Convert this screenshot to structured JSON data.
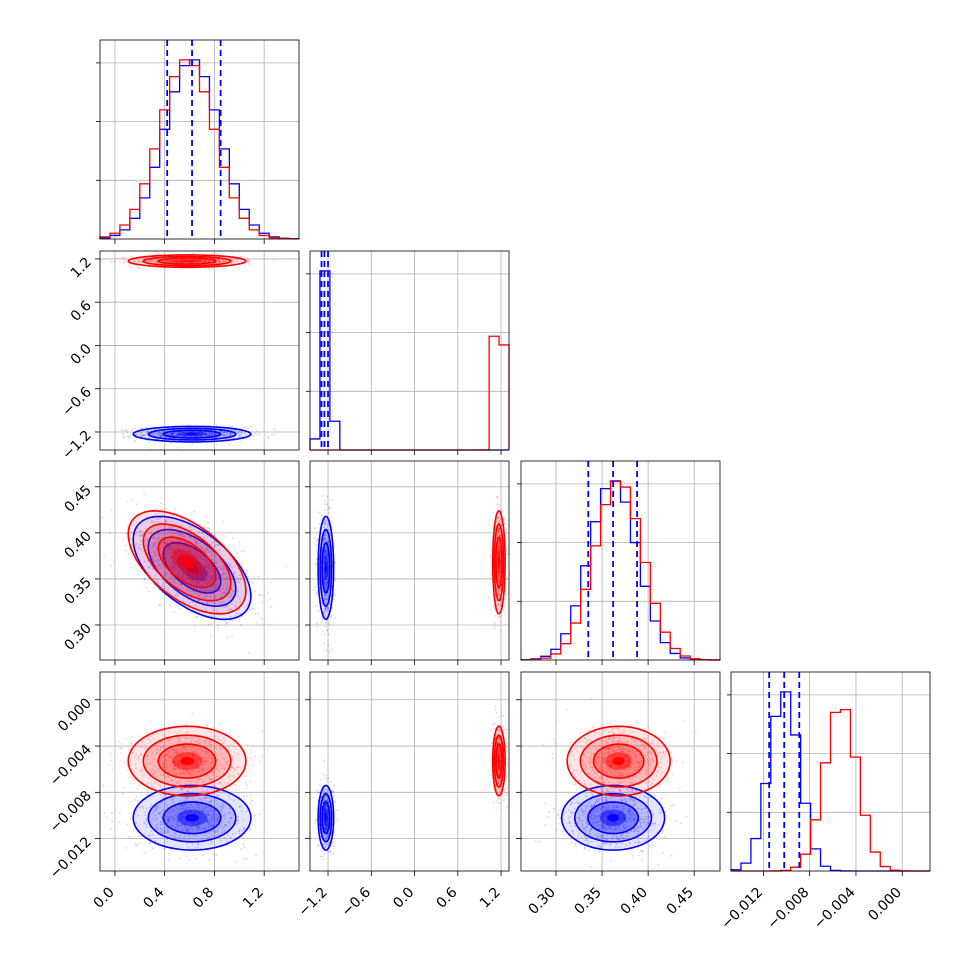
{
  "colors": {
    "blue": "#0000ff",
    "red": "#ff0000",
    "grid": "#b0b0b0"
  },
  "chart_data": {
    "type": "corner",
    "grid": true,
    "series": [
      {
        "color": "#0000ff",
        "x0": {
          "center": 0.62,
          "sd": 0.22
        },
        "x1": {
          "center": -1.23,
          "sd": 0.05
        },
        "x2": {
          "center": 0.362,
          "sd": 0.026
        },
        "x3": {
          "center": -0.0102,
          "sd": 0.0013
        },
        "corr": {
          "x0_x2": -0.55
        }
      },
      {
        "color": "#ff0000",
        "x0": {
          "center": 0.58,
          "sd": 0.22
        },
        "x1": {
          "center": 1.17,
          "sd": 0.04
        },
        "x2": {
          "center": 0.368,
          "sd": 0.026
        },
        "x3": {
          "center": -0.0053,
          "sd": 0.0014
        },
        "corr": {
          "x0_x2": -0.55
        }
      }
    ],
    "quantile_lines": [
      {
        "param": "x0",
        "values": [
          0.42,
          0.62,
          0.85
        ]
      },
      {
        "param": "x1",
        "values": [
          -1.29,
          -1.25,
          -1.2
        ]
      },
      {
        "param": "x2",
        "values": [
          0.335,
          0.362,
          0.388
        ]
      },
      {
        "param": "x3",
        "values": [
          -0.0115,
          -0.0102,
          -0.0089
        ]
      }
    ],
    "axes": [
      {
        "param": "x0",
        "ticks": [
          "0.0",
          "0.4",
          "0.8",
          "1.2"
        ],
        "tick_values": [
          0.0,
          0.4,
          0.8,
          1.2
        ],
        "range": [
          -0.12,
          1.48
        ]
      },
      {
        "param": "x1",
        "ticks": [
          "−1.2",
          "−0.6",
          "0.0",
          "0.6",
          "1.2"
        ],
        "tick_values": [
          -1.2,
          -0.6,
          0.0,
          0.6,
          1.2
        ],
        "range": [
          -1.45,
          1.31
        ]
      },
      {
        "param": "x2",
        "ticks": [
          "0.30",
          "0.35",
          "0.40",
          "0.45"
        ],
        "tick_values": [
          0.3,
          0.35,
          0.4,
          0.45
        ],
        "range": [
          0.262,
          0.478
        ]
      },
      {
        "param": "x3",
        "ticks": [
          "−0.012",
          "−0.008",
          "−0.004",
          "0.000"
        ],
        "tick_values": [
          -0.012,
          -0.008,
          -0.004,
          0.0
        ],
        "range": [
          -0.0148,
          0.0024
        ]
      }
    ]
  }
}
